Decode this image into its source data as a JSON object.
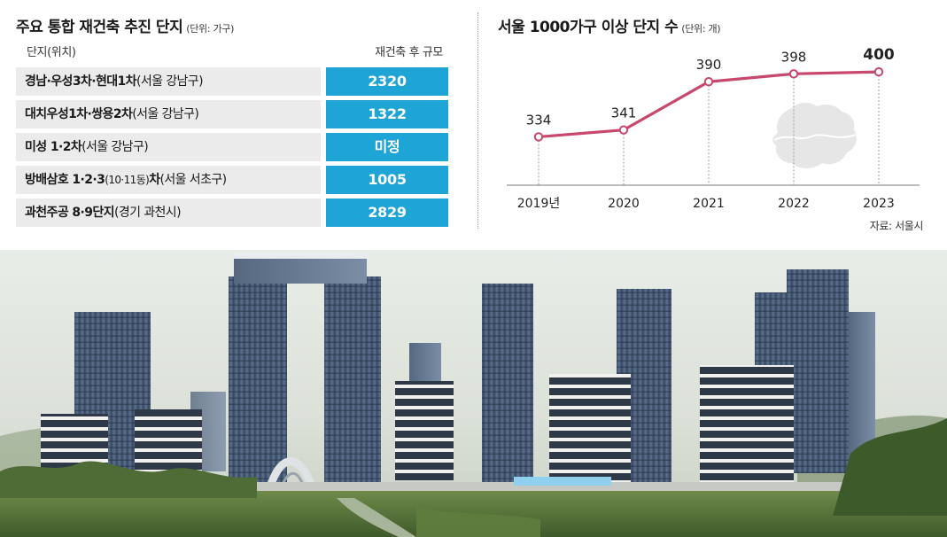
{
  "table": {
    "title": "주요 통합 재건축 추진 단지",
    "unit": "(단위: 가구)",
    "header_name": "단지(위치)",
    "header_size": "재건축 후 규모",
    "rows": [
      {
        "name": "경남·우성3차·현대1차",
        "location": "(서울 강남구)",
        "value": "2320"
      },
      {
        "name": "대치우성1차·쌍용2차",
        "location": "(서울 강남구)",
        "value": "1322"
      },
      {
        "name": "미성 1·2차",
        "location": "(서울 강남구)",
        "value": "미정"
      },
      {
        "name": "방배삼호 1·2·3",
        "location_mid": "(10·11동)",
        "name_tail": "차",
        "location": "(서울 서초구)",
        "value": "1005"
      },
      {
        "name": "과천주공 8·9단지",
        "location": "(경기 과천시)",
        "value": "2829"
      }
    ]
  },
  "chart_data": {
    "type": "line",
    "title": "서울 1000가구 이상 단지 수",
    "unit": "(단위: 개)",
    "categories": [
      "2019년",
      "2020",
      "2021",
      "2022",
      "2023"
    ],
    "values": [
      334,
      341,
      390,
      398,
      400
    ],
    "data_labels": [
      "334",
      "341",
      "390",
      "398",
      "400"
    ],
    "source": "자료: 서울시",
    "line_color": "#c8476c",
    "ylim": [
      320,
      410
    ]
  },
  "colors": {
    "value_cell": "#1fa4d6",
    "name_cell": "#ebebeb",
    "seoul_map": "#e6e6e6"
  }
}
